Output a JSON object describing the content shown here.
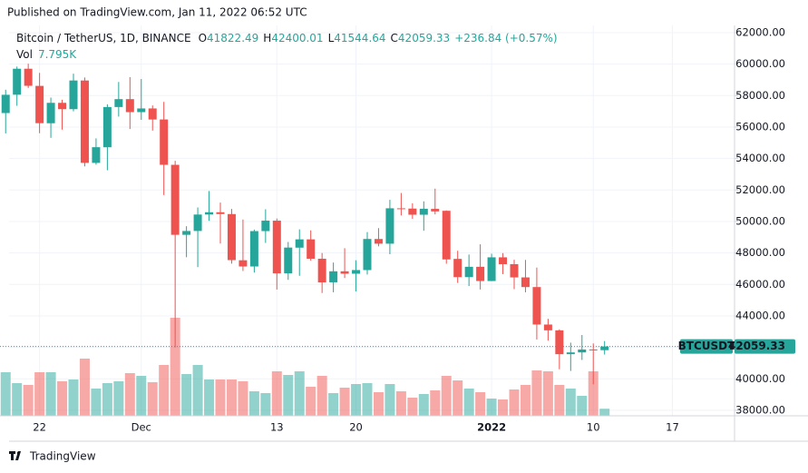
{
  "header": {
    "published": "Published on TradingView.com, Jan 11, 2022 06:52 UTC",
    "symbol": "Bitcoin / TetherUS, 1D, BINANCE",
    "o_label": "O",
    "h_label": "H",
    "l_label": "L",
    "c_label": "C",
    "change": "+236.84 (+0.57%)",
    "vol_label": "Vol",
    "vol_value": "7.795K"
  },
  "footer": {
    "brand": "TradingView"
  },
  "chart_data": {
    "type": "candlestick",
    "symbol_label": "BTCUSDT",
    "x": [
      "2021-11-19",
      "2021-11-20",
      "2021-11-21",
      "2021-11-22",
      "2021-11-23",
      "2021-11-24",
      "2021-11-25",
      "2021-11-26",
      "2021-11-27",
      "2021-11-28",
      "2021-11-29",
      "2021-11-30",
      "2021-12-01",
      "2021-12-02",
      "2021-12-03",
      "2021-12-04",
      "2021-12-05",
      "2021-12-06",
      "2021-12-07",
      "2021-12-08",
      "2021-12-09",
      "2021-12-10",
      "2021-12-11",
      "2021-12-12",
      "2021-12-13",
      "2021-12-14",
      "2021-12-15",
      "2021-12-16",
      "2021-12-17",
      "2021-12-18",
      "2021-12-19",
      "2021-12-20",
      "2021-12-21",
      "2021-12-22",
      "2021-12-23",
      "2021-12-24",
      "2021-12-25",
      "2021-12-26",
      "2021-12-27",
      "2021-12-28",
      "2021-12-29",
      "2021-12-30",
      "2021-12-31",
      "2022-01-01",
      "2022-01-02",
      "2022-01-03",
      "2022-01-04",
      "2022-01-05",
      "2022-01-06",
      "2022-01-07",
      "2022-01-08",
      "2022-01-09",
      "2022-01-10",
      "2022-01-11"
    ],
    "open": [
      56891,
      58057,
      59707,
      58617,
      56243,
      57541,
      57138,
      58960,
      53723,
      54716,
      57274,
      57776,
      56950,
      57184,
      56484,
      53601,
      49153,
      49397,
      50441,
      50588,
      50471,
      47535,
      47140,
      49389,
      50053,
      46702,
      48336,
      48864,
      47633,
      46134,
      46834,
      46681,
      46912,
      48887,
      48588,
      50838,
      50820,
      50428,
      50802,
      50679,
      47623,
      46464,
      47120,
      46216,
      47722,
      47286,
      46446,
      45832,
      43451,
      43082,
      41566,
      41679,
      41864,
      41822.49
    ],
    "high": [
      58373,
      59845,
      60029,
      59444,
      57875,
      57735,
      59398,
      59150,
      55280,
      57445,
      58865,
      59176,
      59053,
      57375,
      57600,
      53859,
      49700,
      50891,
      51936,
      51200,
      50797,
      50125,
      49485,
      50777,
      50189,
      48700,
      49500,
      49436,
      47995,
      47392,
      48300,
      47537,
      49328,
      49576,
      51375,
      51810,
      51156,
      51280,
      52088,
      50704,
      48139,
      47900,
      48548,
      47954,
      47990,
      47570,
      47557,
      47070,
      43816,
      43145,
      42300,
      42786,
      42248,
      42400.01
    ],
    "low": [
      55600,
      57353,
      58486,
      55610,
      55317,
      55837,
      57000,
      53500,
      53610,
      53256,
      56666,
      55875,
      56458,
      55777,
      51680,
      42000,
      47727,
      47100,
      50039,
      48600,
      47320,
      46852,
      46751,
      48638,
      45672,
      46290,
      46547,
      47511,
      45456,
      45500,
      46406,
      45558,
      46630,
      48421,
      47920,
      50384,
      50171,
      49412,
      50449,
      47313,
      46096,
      45900,
      45678,
      46208,
      46654,
      45696,
      45500,
      42500,
      42430,
      40610,
      40501,
      41200,
      39650,
      41544.64
    ],
    "close": [
      58052,
      59707,
      58622,
      56247,
      57541,
      57138,
      58960,
      53726,
      54721,
      57274,
      57776,
      56950,
      57184,
      56480,
      53601,
      49152,
      49396,
      50441,
      50588,
      50471,
      47545,
      47140,
      49389,
      50053,
      46702,
      48343,
      48864,
      47632,
      46131,
      46834,
      46681,
      46914,
      48889,
      48588,
      50838,
      50821,
      50429,
      50809,
      50640,
      47588,
      46464,
      47120,
      46216,
      47722,
      47286,
      46446,
      45832,
      43451,
      43082,
      41566,
      41679,
      41864,
      41822,
      42059.33
    ],
    "volume": [
      48000,
      36000,
      34000,
      48000,
      48000,
      38000,
      40000,
      63000,
      30000,
      36000,
      38000,
      47000,
      44000,
      37000,
      56000,
      108000,
      46000,
      56000,
      40000,
      40000,
      40000,
      38000,
      27000,
      25000,
      49000,
      45000,
      49000,
      32000,
      44000,
      25000,
      31000,
      35000,
      36000,
      26000,
      35000,
      27000,
      20000,
      24000,
      28000,
      44000,
      39000,
      30000,
      26000,
      19000,
      18000,
      29000,
      34000,
      50000,
      49000,
      34000,
      30000,
      22000,
      49000,
      7795
    ],
    "up_color": "#26a69a",
    "down_color": "#ef5350",
    "xlim": [
      "2021-11-19",
      "2022-01-23"
    ],
    "xticks": [
      {
        "value": "2021-11-22",
        "label": "22"
      },
      {
        "value": "2021-12-01",
        "label": "Dec"
      },
      {
        "value": "2021-12-13",
        "label": "13"
      },
      {
        "value": "2021-12-20",
        "label": "20"
      },
      {
        "value": "2022-01-01",
        "label": "2022"
      },
      {
        "value": "2022-01-10",
        "label": "10"
      },
      {
        "value": "2022-01-17",
        "label": "17"
      }
    ],
    "ylim": [
      37650,
      62460
    ],
    "yticks": [
      {
        "value": 38000,
        "label": "38000.00"
      },
      {
        "value": 40000,
        "label": "40000.00"
      },
      {
        "value": 42000,
        "label": "42000.00"
      },
      {
        "value": 44000,
        "label": "44000.00"
      },
      {
        "value": 46000,
        "label": "46000.00"
      },
      {
        "value": 48000,
        "label": "48000.00"
      },
      {
        "value": 50000,
        "label": "50000.00"
      },
      {
        "value": 52000,
        "label": "52000.00"
      },
      {
        "value": 54000,
        "label": "54000.00"
      },
      {
        "value": 56000,
        "label": "56000.00"
      },
      {
        "value": 58000,
        "label": "58000.00"
      },
      {
        "value": 60000,
        "label": "60000.00"
      },
      {
        "value": 62000,
        "label": "62000.00"
      }
    ],
    "grid": true
  }
}
